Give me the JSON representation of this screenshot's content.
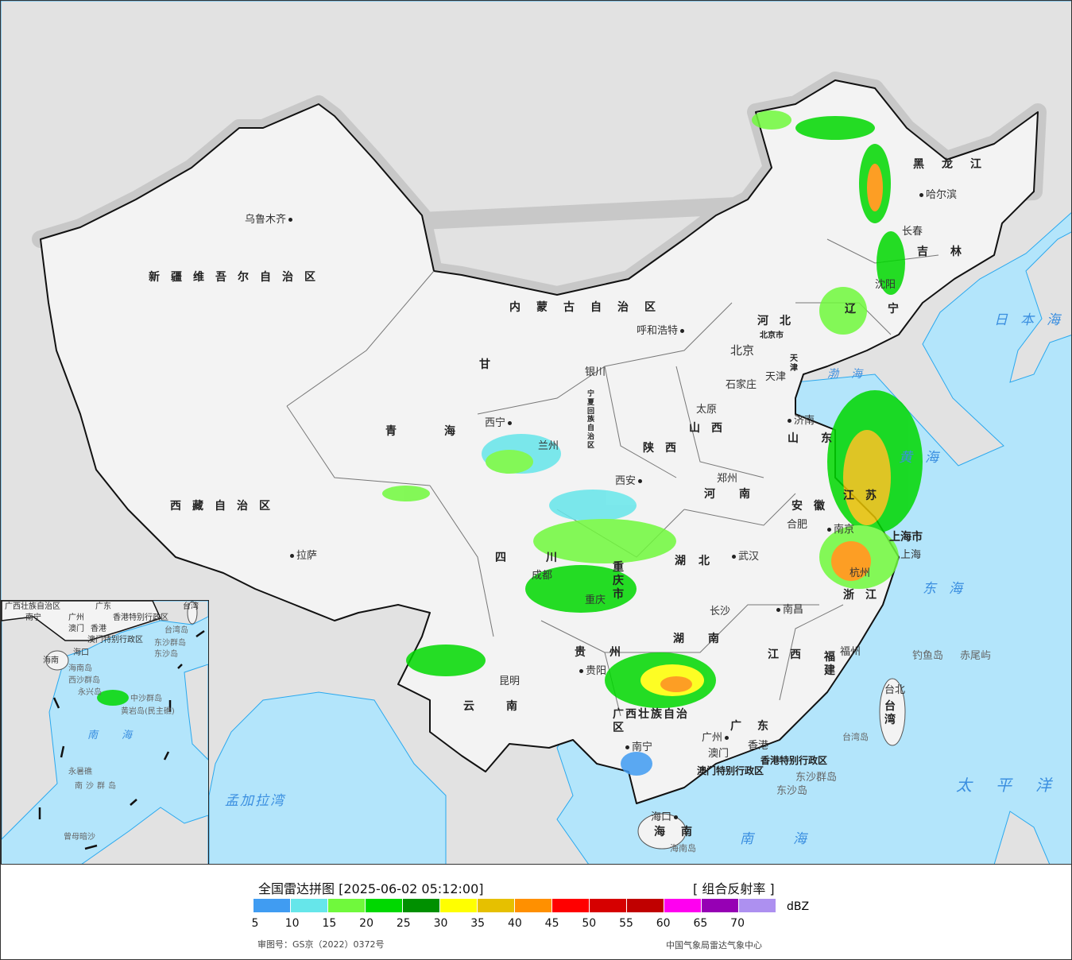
{
  "legend": {
    "title": "全国雷达拼图 [2025-06-02 05:12:00]",
    "product": "[ 组合反射率 ]",
    "unit": "dBZ",
    "ticks": [
      "5",
      "10",
      "15",
      "20",
      "25",
      "30",
      "35",
      "40",
      "45",
      "50",
      "55",
      "60",
      "65",
      "70"
    ],
    "colors": [
      "#409cf2",
      "#66e6ea",
      "#70f93c",
      "#00d800",
      "#009000",
      "#ffff00",
      "#e6c000",
      "#ff9000",
      "#ff0000",
      "#d60000",
      "#c00000",
      "#ff00f0",
      "#9600b4",
      "#ad90f0"
    ],
    "approval": "审图号：GS京（2022）0372号",
    "organization": "中国气象局雷达气象中心"
  },
  "map": {
    "provinces": [
      "新疆维吾尔自治区",
      "西藏自治区",
      "青海",
      "甘",
      "内蒙古自治区",
      "黑龙江",
      "吉林",
      "辽宁",
      "河北",
      "山西",
      "陕西",
      "四川",
      "云南",
      "贵州",
      "湖南",
      "湖北",
      "河南",
      "山东",
      "江苏",
      "安徽",
      "浙江",
      "江西",
      "福建",
      "广东",
      "广西壮族自治区",
      "海南",
      "重庆市",
      "宁夏回族自治区",
      "台湾",
      "香港特别行政区",
      "澳门特别行政区",
      "上海市",
      "北京市",
      "天津"
    ],
    "cities": [
      "乌鲁木齐",
      "拉萨",
      "西宁",
      "兰州",
      "银川",
      "呼和浩特",
      "哈尔滨",
      "长春",
      "沈阳",
      "北京",
      "天津",
      "石家庄",
      "太原",
      "济南",
      "郑州",
      "西安",
      "成都",
      "重庆",
      "武汉",
      "合肥",
      "南京",
      "上海",
      "杭州",
      "南昌",
      "长沙",
      "贵阳",
      "昆明",
      "南宁",
      "广州",
      "香港",
      "澳门",
      "福州",
      "台北",
      "海口"
    ],
    "islands": [
      "钓鱼岛",
      "赤尾屿",
      "台湾岛",
      "东沙群岛",
      "东沙岛",
      "海南岛"
    ],
    "seas": [
      "日本海",
      "太平洋",
      "东海",
      "南海",
      "孟加拉湾",
      "黄海",
      "渤海"
    ]
  },
  "inset": {
    "labels": [
      "广西壮族自治区",
      "广东",
      "南宁",
      "广州",
      "澳门",
      "香港",
      "香港特别行政区",
      "澳门特别行政区",
      "台湾",
      "台湾岛",
      "东沙群岛",
      "东沙岛",
      "海口",
      "海南",
      "海南岛",
      "西沙群岛",
      "永兴岛",
      "中沙群岛",
      "黄岩岛(民主礁)",
      "南海",
      "永暑礁",
      "南沙群岛",
      "曾母暗沙"
    ]
  }
}
